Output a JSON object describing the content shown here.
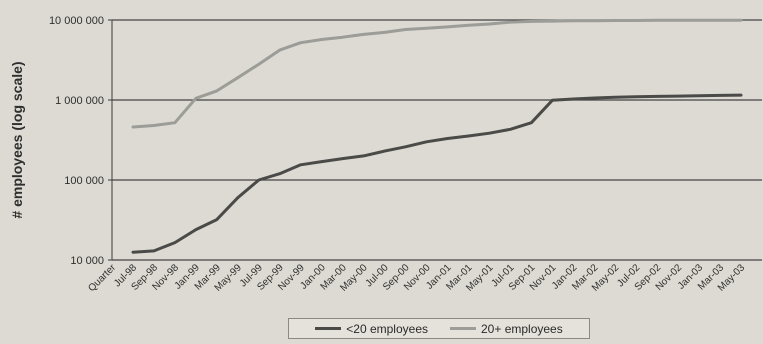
{
  "chart_data": {
    "type": "line",
    "ylabel": "# employees (log scale)",
    "y_scale": "log",
    "ylim": [
      10000,
      10000000
    ],
    "y_ticks": [
      {
        "value": 10000,
        "label": "10 000"
      },
      {
        "value": 100000,
        "label": "100 000"
      },
      {
        "value": 1000000,
        "label": "1 000 000"
      },
      {
        "value": 10000000,
        "label": "10 000 000"
      }
    ],
    "x_first_label": "Quarter",
    "x": [
      "Jul-98",
      "Sep-98",
      "Nov-98",
      "Jan-99",
      "Mar-99",
      "May-99",
      "Jul-99",
      "Sep-99",
      "Nov-99",
      "Jan-00",
      "Mar-00",
      "May-00",
      "Jul-00",
      "Sep-00",
      "Nov-00",
      "Jan-01",
      "Mar-01",
      "May-01",
      "Jul-01",
      "Sep-01",
      "Nov-01",
      "Jan-02",
      "Mar-02",
      "May-02",
      "Jul-02",
      "Sep-02",
      "Nov-02",
      "Jan-03",
      "Mar-03",
      "May-03"
    ],
    "grid": true,
    "legend_position": "bottom-center",
    "series": [
      {
        "name": "<20 employees",
        "color": "#4a4a48",
        "values": [
          12500,
          13000,
          16500,
          24000,
          32000,
          60000,
          100000,
          120000,
          155000,
          170000,
          185000,
          200000,
          230000,
          260000,
          300000,
          330000,
          355000,
          385000,
          430000,
          520000,
          990000,
          1030000,
          1060000,
          1080000,
          1100000,
          1110000,
          1120000,
          1130000,
          1140000,
          1150000
        ]
      },
      {
        "name": "20+ employees",
        "color": "#9c9c98",
        "values": [
          460000,
          480000,
          520000,
          1050000,
          1300000,
          1900000,
          2800000,
          4200000,
          5200000,
          5700000,
          6100000,
          6600000,
          7000000,
          7600000,
          7900000,
          8200000,
          8600000,
          8900000,
          9400000,
          9600000,
          9700000,
          9800000,
          9800000,
          9850000,
          9850000,
          9900000,
          9900000,
          9900000,
          9950000,
          9950000
        ]
      }
    ]
  }
}
